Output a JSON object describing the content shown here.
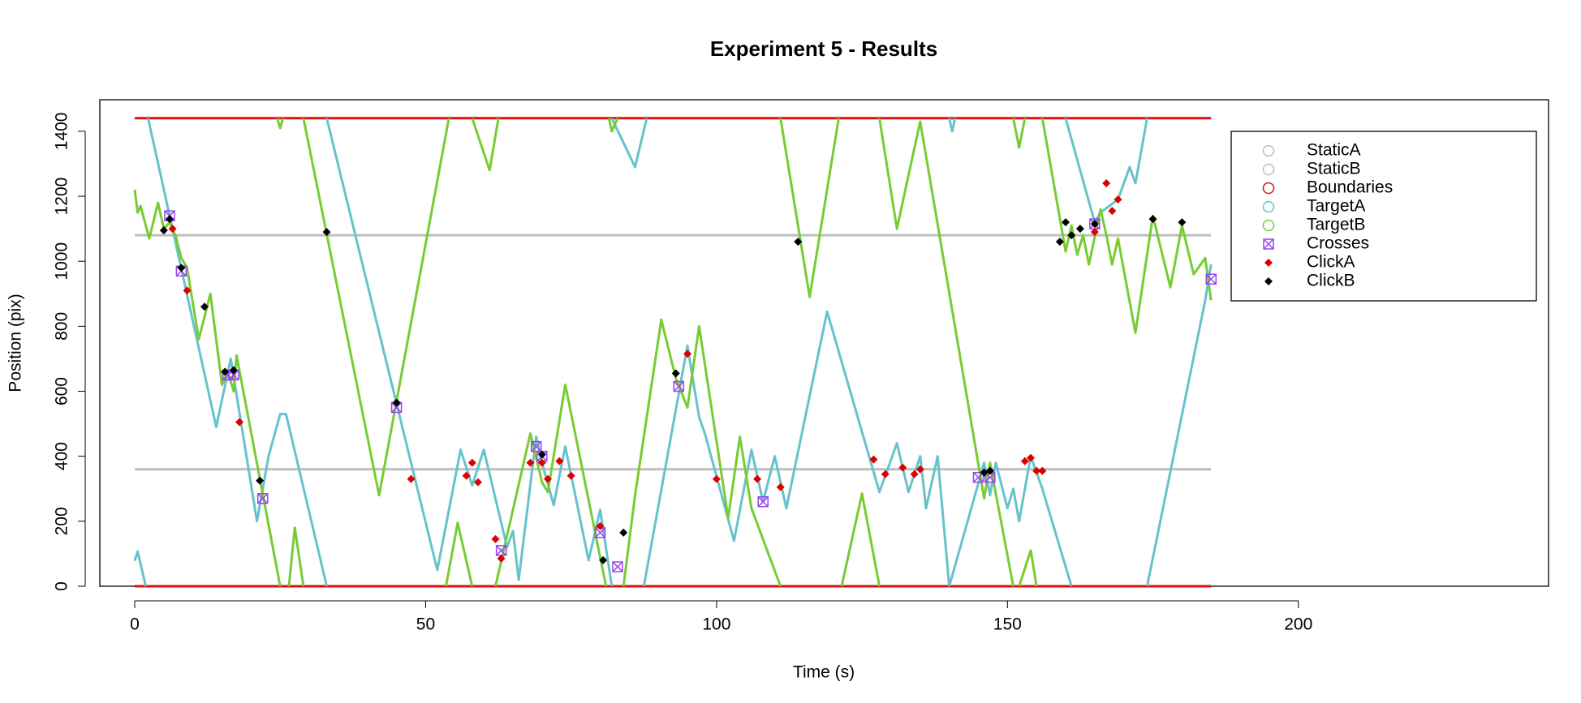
{
  "chart_data": {
    "type": "line",
    "title": "Experiment 5 - Results",
    "x_label": "Time (s)",
    "y_label": "Position (pix)",
    "xlim": [
      -6,
      243
    ],
    "ylim": [
      0,
      1497
    ],
    "xticks": [
      0,
      50,
      100,
      150,
      200
    ],
    "yticks": [
      0,
      200,
      400,
      600,
      800,
      1000,
      1200,
      1400
    ],
    "legend": "topright",
    "series": [
      {
        "name": "StaticA",
        "color": "#bebebe",
        "style": "line",
        "marker": "circle",
        "x": [
          0,
          185
        ],
        "values": [
          360,
          360
        ]
      },
      {
        "name": "StaticB",
        "color": "#bebebe",
        "style": "line",
        "marker": "circle",
        "x": [
          0,
          185
        ],
        "values": [
          1080,
          1080
        ]
      },
      {
        "name": "Boundaries",
        "color": "#dd1111",
        "style": "line",
        "marker": "circle",
        "x": [
          0,
          185,
          null,
          0,
          185
        ],
        "values": [
          0,
          0,
          null,
          1440,
          1440
        ]
      },
      {
        "name": "TargetA",
        "color": "#66c2cc",
        "style": "line",
        "marker": "circle",
        "x": [
          0,
          0.5,
          1.9,
          null,
          2.3,
          14,
          16.5,
          21,
          23,
          25,
          26,
          33,
          null,
          33,
          52,
          56,
          58,
          60,
          64,
          65,
          66,
          69,
          70,
          72,
          74,
          78,
          80,
          82,
          null,
          82,
          86,
          88,
          null,
          87.5,
          95,
          97,
          98,
          103,
          106,
          108,
          110,
          112,
          119,
          128,
          131,
          133,
          135,
          136,
          138,
          140,
          null,
          140,
          140.5,
          141,
          null,
          140,
          146,
          147,
          148,
          150,
          151,
          152,
          154,
          156,
          161,
          null,
          160,
          165,
          166,
          169,
          171,
          172,
          174,
          null,
          174,
          184,
          185
        ],
        "values": [
          78,
          107,
          0,
          null,
          1440,
          490,
          700,
          200,
          400,
          530,
          530,
          0,
          null,
          1440,
          50,
          420,
          310,
          420,
          120,
          170,
          20,
          460,
          380,
          250,
          430,
          80,
          235,
          0,
          null,
          1440,
          1290,
          1440,
          null,
          0,
          740,
          520,
          470,
          140,
          420,
          260,
          400,
          240,
          845,
          290,
          440,
          290,
          400,
          240,
          400,
          0,
          null,
          1440,
          1400,
          1440,
          null,
          0,
          380,
          280,
          380,
          240,
          300,
          200,
          400,
          300,
          0,
          null,
          1440,
          1120,
          1150,
          1190,
          1290,
          1240,
          1440,
          null,
          0,
          880,
          990
        ]
      },
      {
        "name": "TargetB",
        "color": "#77cc33",
        "style": "line",
        "marker": "circle",
        "x": [
          0,
          0.5,
          1,
          2.5,
          4,
          5,
          6,
          7,
          8,
          9,
          11,
          13,
          15,
          16,
          17,
          17.5,
          25,
          null,
          24.5,
          25,
          25.5,
          null,
          26.5,
          27.5,
          29,
          null,
          29,
          42,
          54,
          null,
          53.5,
          55.5,
          58,
          null,
          58,
          61,
          62.5,
          null,
          62,
          68,
          70,
          71,
          74,
          81,
          null,
          81.5,
          82,
          83,
          null,
          84,
          86,
          90.5,
          93,
          95,
          97,
          102,
          104,
          106,
          111,
          null,
          111,
          116,
          121,
          null,
          121.5,
          125,
          128,
          null,
          128,
          131,
          135,
          146,
          147,
          151,
          null,
          151,
          152,
          153,
          null,
          152,
          154,
          155,
          null,
          156,
          160,
          161,
          162,
          163,
          164,
          166,
          167,
          168,
          169,
          172,
          175,
          178,
          180,
          182,
          184,
          185
        ],
        "values": [
          1220,
          1150,
          1170,
          1070,
          1180,
          1100,
          1120,
          1080,
          1010,
          980,
          760,
          900,
          620,
          660,
          600,
          710,
          0,
          null,
          1440,
          1410,
          1440,
          null,
          0,
          180,
          0,
          null,
          1440,
          280,
          1440,
          null,
          0,
          195,
          0,
          null,
          1440,
          1280,
          1440,
          null,
          0,
          470,
          320,
          290,
          620,
          0,
          null,
          1440,
          1400,
          1440,
          null,
          0,
          280,
          820,
          640,
          550,
          800,
          210,
          460,
          240,
          0,
          null,
          1440,
          890,
          1440,
          null,
          0,
          285,
          0,
          null,
          1440,
          1100,
          1430,
          270,
          380,
          0,
          null,
          1440,
          1350,
          1440,
          null,
          0,
          110,
          0,
          null,
          1440,
          1030,
          1110,
          1020,
          1080,
          990,
          1160,
          1080,
          990,
          1070,
          780,
          1140,
          920,
          1110,
          960,
          1010,
          880
        ]
      },
      {
        "name": "Crosses",
        "color": "#9944ee",
        "style": "points",
        "marker": "crossed-square",
        "x": [
          6,
          8,
          16,
          17,
          22,
          45,
          63,
          69,
          70,
          80,
          83,
          93.5,
          108,
          145,
          147,
          165,
          185
        ],
        "values": [
          1140,
          970,
          650,
          650,
          270,
          550,
          110,
          430,
          400,
          165,
          60,
          615,
          260,
          335,
          335,
          1115,
          945
        ]
      },
      {
        "name": "ClickA",
        "color": "#dd0000",
        "style": "points",
        "marker": "diamond",
        "x": [
          6.5,
          9,
          18,
          47.5,
          57,
          58,
          59,
          62,
          63,
          68,
          70,
          71,
          73,
          75,
          80,
          95,
          100,
          107,
          111,
          127,
          129,
          132,
          134,
          135,
          147,
          153,
          154,
          155,
          156,
          165,
          167,
          168,
          169
        ],
        "values": [
          1100,
          910,
          505,
          330,
          340,
          380,
          320,
          145,
          85,
          380,
          380,
          330,
          385,
          340,
          185,
          715,
          330,
          330,
          305,
          390,
          345,
          365,
          345,
          360,
          355,
          385,
          395,
          355,
          355,
          1090,
          1240,
          1155,
          1190
        ]
      },
      {
        "name": "ClickB",
        "color": "#000000",
        "style": "points",
        "marker": "diamond",
        "x": [
          5,
          6,
          8,
          12,
          15.5,
          17,
          21.5,
          33,
          45,
          70,
          80.5,
          84,
          93,
          114,
          146,
          147,
          159,
          160,
          161,
          162.5,
          165,
          175,
          180
        ],
        "values": [
          1095,
          1130,
          980,
          860,
          660,
          665,
          325,
          1090,
          565,
          405,
          80,
          165,
          655,
          1060,
          350,
          355,
          1060,
          1120,
          1080,
          1100,
          1115,
          1130,
          1120
        ]
      }
    ]
  }
}
